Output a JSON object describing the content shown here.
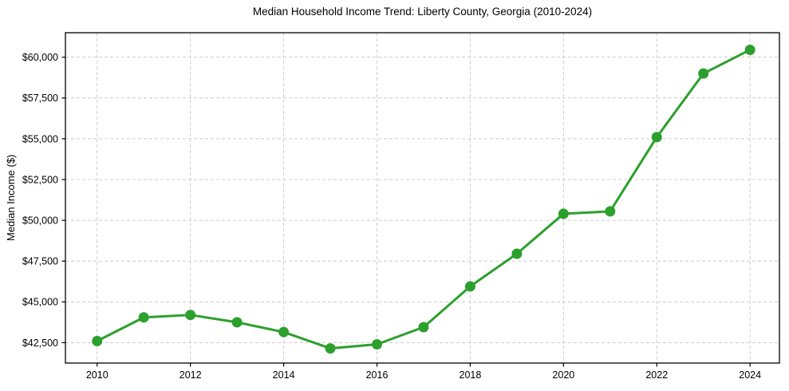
{
  "chart_data": {
    "type": "line",
    "title": "Median Household Income Trend: Liberty County, Georgia (2010-2024)",
    "xlabel": "",
    "ylabel": "Median Income ($)",
    "x": [
      2010,
      2011,
      2012,
      2013,
      2014,
      2015,
      2016,
      2017,
      2018,
      2019,
      2020,
      2021,
      2022,
      2023,
      2024
    ],
    "series": [
      {
        "name": "Median Household Income",
        "values": [
          42600,
          44050,
          44200,
          43750,
          43150,
          42150,
          42400,
          43450,
          45950,
          47950,
          50400,
          50550,
          55100,
          59000,
          60450
        ],
        "color": "#2ca02c"
      }
    ],
    "x_ticks": [
      2010,
      2012,
      2014,
      2016,
      2018,
      2020,
      2022,
      2024
    ],
    "x_tick_labels": [
      "2010",
      "2012",
      "2014",
      "2016",
      "2018",
      "2020",
      "2022",
      "2024"
    ],
    "y_ticks": [
      42500,
      45000,
      47500,
      50000,
      52500,
      55000,
      57500,
      60000
    ],
    "y_tick_labels": [
      "$42,500",
      "$45,000",
      "$47,500",
      "$50,000",
      "$52,500",
      "$55,000",
      "$57,500",
      "$60,000"
    ],
    "xlim": [
      2009.32,
      2024.63
    ],
    "ylim": [
      41250,
      61500
    ],
    "grid": true,
    "grid_color": "#cccccc",
    "spine_color": "#000000",
    "background_color": "#ffffff",
    "legend": "none",
    "marker": "circle",
    "marker_radius": 6.5,
    "line_width": 3
  }
}
